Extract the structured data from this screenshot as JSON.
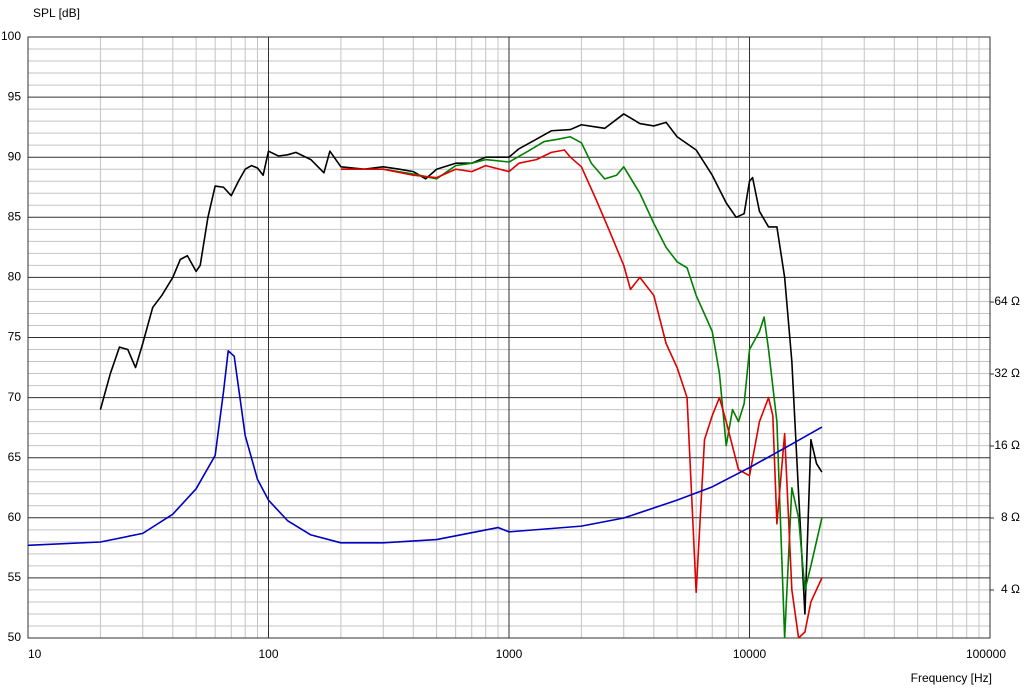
{
  "chart_data": {
    "type": "line",
    "ylabel": "SPL [dB]",
    "xlabel": "Frequency [Hz]",
    "xscale": "log",
    "xlim": [
      10,
      100000
    ],
    "xticks": [
      10,
      100,
      1000,
      10000,
      100000
    ],
    "xminorticks": [
      20,
      30,
      40,
      50,
      60,
      70,
      80,
      90,
      200,
      300,
      400,
      500,
      600,
      700,
      800,
      900,
      2000,
      3000,
      4000,
      5000,
      6000,
      7000,
      8000,
      9000,
      20000,
      30000,
      40000,
      50000,
      60000,
      70000,
      80000,
      90000
    ],
    "ylim": [
      50,
      100
    ],
    "yticks": [
      50,
      55,
      60,
      65,
      70,
      75,
      80,
      85,
      90,
      95,
      100
    ],
    "yminorticks": [
      51,
      52,
      53,
      54,
      56,
      57,
      58,
      59,
      61,
      62,
      63,
      64,
      66,
      67,
      68,
      69,
      71,
      72,
      73,
      74,
      76,
      77,
      78,
      79,
      81,
      82,
      83,
      84,
      86,
      87,
      88,
      89,
      91,
      92,
      93,
      94,
      96,
      97,
      98,
      99
    ],
    "y2scale": "log",
    "y2lim": [
      2.52,
      821
    ],
    "y2ticks": [
      {
        "value": 4,
        "label": "4 Ω"
      },
      {
        "value": 8,
        "label": "8 Ω"
      },
      {
        "value": 16,
        "label": "16 Ω"
      },
      {
        "value": 32,
        "label": "32 Ω"
      },
      {
        "value": 64,
        "label": "64 Ω"
      }
    ],
    "grid": true,
    "series": [
      {
        "color": "#000000",
        "x": [
          20,
          22,
          24,
          26,
          28,
          30,
          33,
          36,
          40,
          43,
          46,
          50,
          52,
          56,
          60,
          65,
          70,
          75,
          80,
          85,
          90,
          95,
          100,
          110,
          120,
          130,
          150,
          170,
          180,
          200,
          250,
          300,
          350,
          400,
          450,
          500,
          600,
          700,
          800,
          1000,
          1100,
          1300,
          1500,
          1800,
          2000,
          2500,
          3000,
          3500,
          4000,
          4500,
          5000,
          6000,
          7000,
          8000,
          8800,
          9500,
          10000,
          10300,
          11000,
          12000,
          13000,
          14000,
          15000,
          16000,
          17000,
          18000,
          19000,
          20000
        ],
        "values": [
          69,
          72,
          74.2,
          74,
          72.5,
          74.5,
          77.5,
          78.5,
          80,
          81.5,
          81.8,
          80.5,
          81,
          85,
          87.6,
          87.5,
          86.8,
          88,
          89,
          89.3,
          89.1,
          88.5,
          90.5,
          90.1,
          90.2,
          90.4,
          89.8,
          88.7,
          90.5,
          89.2,
          89,
          89.2,
          89,
          88.8,
          88.2,
          89,
          89.5,
          89.5,
          90,
          90,
          90.7,
          91.5,
          92.2,
          92.3,
          92.7,
          92.4,
          93.6,
          92.8,
          92.6,
          92.9,
          91.7,
          90.6,
          88.5,
          86.2,
          85,
          85.3,
          88,
          88.3,
          85.5,
          84.2,
          84.2,
          80,
          73,
          62,
          52,
          66.5,
          64.5,
          63.8
        ]
      },
      {
        "color": "#008000",
        "x": [
          200,
          300,
          400,
          500,
          600,
          700,
          800,
          1000,
          1200,
          1400,
          1600,
          1800,
          2000,
          2200,
          2500,
          2800,
          3000,
          3500,
          4000,
          4500,
          5000,
          5500,
          6000,
          7000,
          7500,
          8000,
          8500,
          9000,
          9500,
          10000,
          11000,
          11500,
          12000,
          13000,
          14000,
          15000,
          16000,
          17000,
          18000,
          20000
        ],
        "values": [
          89,
          89,
          88.6,
          88.2,
          89.3,
          89.5,
          89.8,
          89.6,
          90.5,
          91.3,
          91.5,
          91.7,
          91.2,
          89.5,
          88.2,
          88.5,
          89.2,
          87,
          84.5,
          82.5,
          81.3,
          80.8,
          78.5,
          75.5,
          72,
          66,
          69,
          68,
          69.5,
          74,
          75.5,
          76.7,
          74,
          68,
          50,
          62.5,
          60,
          54,
          56,
          60
        ]
      },
      {
        "color": "#e00000",
        "x": [
          200,
          300,
          400,
          500,
          600,
          700,
          800,
          1000,
          1100,
          1300,
          1500,
          1700,
          1800,
          2000,
          2300,
          2600,
          3000,
          3200,
          3500,
          4000,
          4500,
          5000,
          5500,
          6000,
          6500,
          7000,
          7500,
          8000,
          9000,
          10000,
          11000,
          12000,
          12500,
          13000,
          14000,
          15000,
          16000,
          17000,
          18000,
          20000
        ],
        "values": [
          89,
          89,
          88.5,
          88.3,
          89,
          88.8,
          89.3,
          88.8,
          89.5,
          89.8,
          90.4,
          90.6,
          90,
          89.2,
          86.5,
          84,
          81,
          79,
          80,
          78.5,
          74.5,
          72.5,
          70,
          53.8,
          66.5,
          68.5,
          70,
          68,
          64,
          63.5,
          68,
          70,
          68.5,
          59.5,
          67,
          54,
          50,
          50.5,
          53,
          55
        ]
      },
      {
        "color": "#0000c0",
        "axis": "y2",
        "x": [
          10,
          20,
          30,
          40,
          50,
          60,
          65,
          68,
          72,
          80,
          90,
          100,
          120,
          150,
          200,
          300,
          500,
          900,
          1000,
          2000,
          3000,
          5000,
          7000,
          10000,
          15000,
          20000
        ],
        "values": [
          6.15,
          6.35,
          6.9,
          8.3,
          10.6,
          14.6,
          27,
          40,
          38,
          17.7,
          11.6,
          9.5,
          7.8,
          6.8,
          6.3,
          6.3,
          6.5,
          7.3,
          7.0,
          7.4,
          8.0,
          9.5,
          10.8,
          13,
          16.3,
          19.2
        ]
      }
    ]
  }
}
